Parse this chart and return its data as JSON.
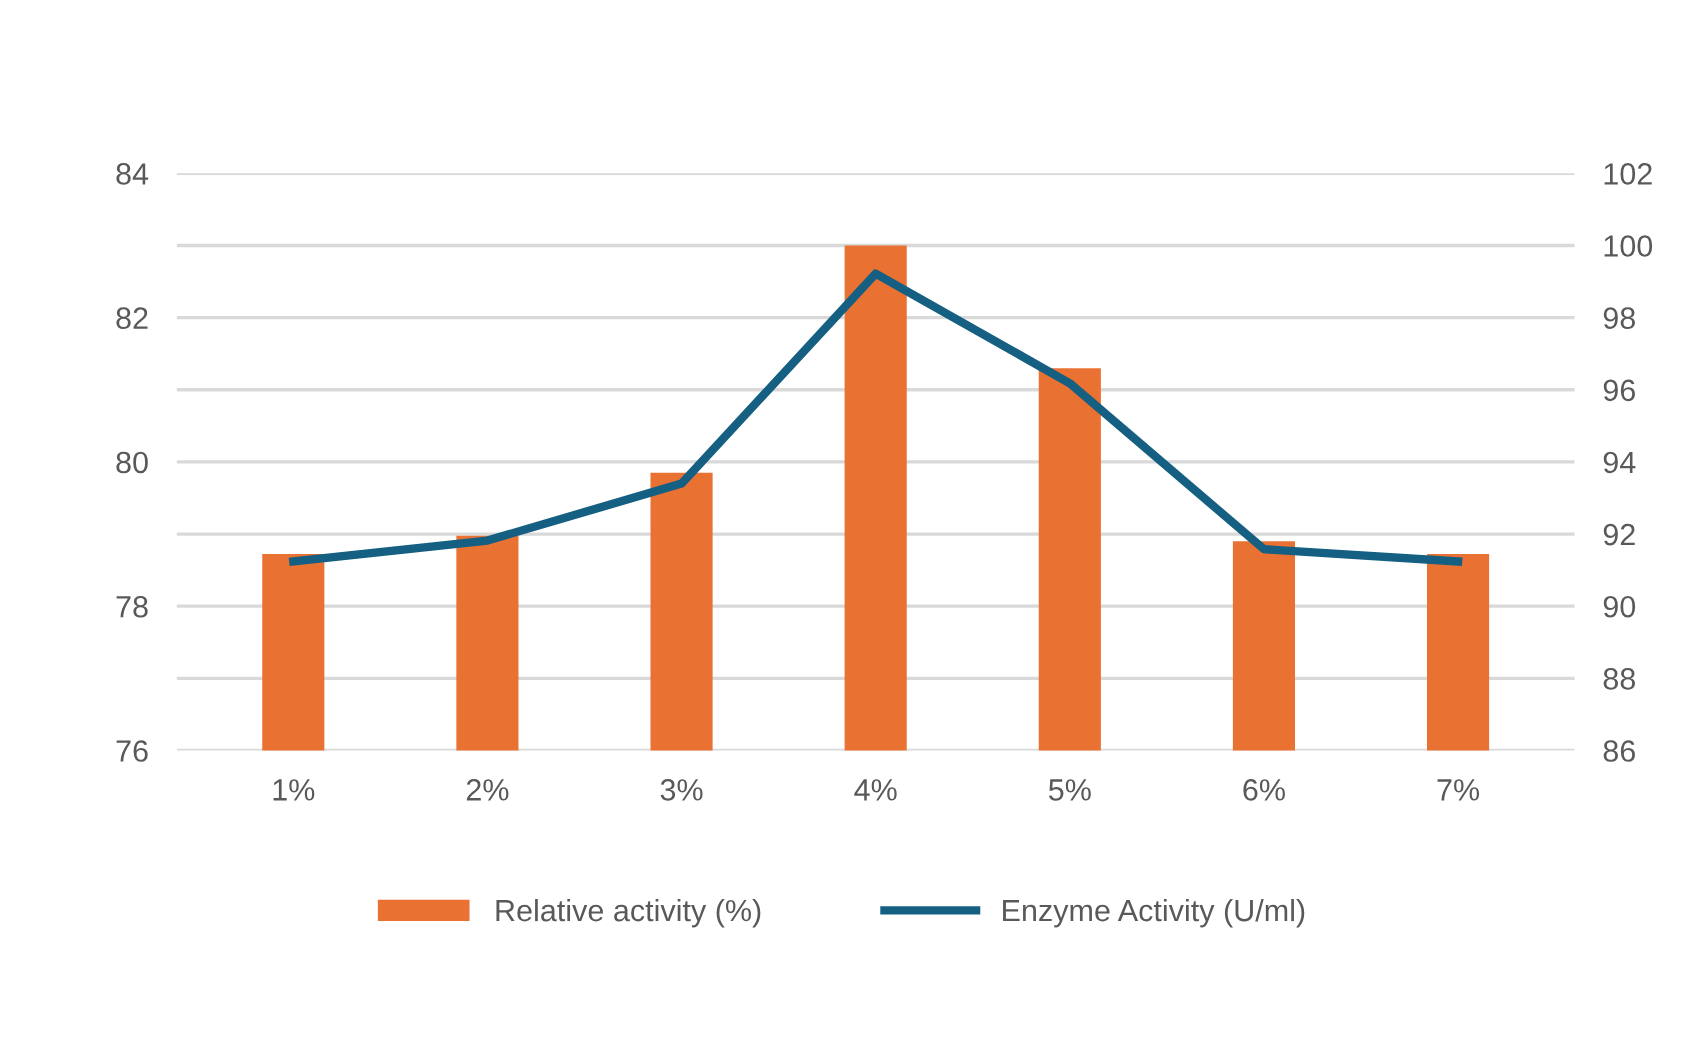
{
  "chart_data": {
    "type": "bar",
    "categories": [
      "1%",
      "2%",
      "3%",
      "4%",
      "5%",
      "6%",
      "7%"
    ],
    "series": [
      {
        "name": "Relative activity (%)",
        "axis": "y2",
        "color": "#e97132",
        "values": [
          91.45,
          91.95,
          93.7,
          100,
          96.6,
          91.8,
          91.45
        ]
      },
      {
        "name": "Enzyme Activity (U/ml)",
        "type": "line",
        "axis": "y",
        "color": "#156082",
        "values": [
          78.62,
          78.91,
          79.7,
          82.61,
          81.09,
          78.79,
          78.62
        ]
      }
    ],
    "ylim": [
      76,
      84
    ],
    "yticks": [
      76,
      78,
      80,
      82,
      84
    ],
    "y2lim": [
      86,
      102
    ],
    "y2ticks": [
      86,
      88,
      90,
      92,
      94,
      96,
      98,
      100,
      102
    ],
    "grid": true,
    "legend": "bottom",
    "marker": "none",
    "line_style": "solid"
  }
}
